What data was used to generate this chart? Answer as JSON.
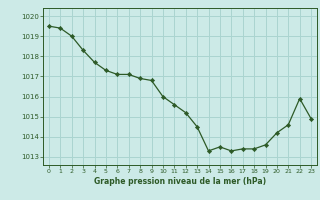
{
  "x": [
    0,
    1,
    2,
    3,
    4,
    5,
    6,
    7,
    8,
    9,
    10,
    11,
    12,
    13,
    14,
    15,
    16,
    17,
    18,
    19,
    20,
    21,
    22,
    23
  ],
  "y": [
    1019.5,
    1019.4,
    1019.0,
    1018.3,
    1017.7,
    1017.3,
    1017.1,
    1017.1,
    1016.9,
    1016.8,
    1016.0,
    1015.6,
    1015.2,
    1014.5,
    1013.3,
    1013.5,
    1013.3,
    1013.4,
    1013.4,
    1013.6,
    1014.2,
    1014.6,
    1015.9,
    1014.9
  ],
  "line_color": "#2d5a27",
  "marker_color": "#2d5a27",
  "bg_color": "#cceae7",
  "grid_color": "#aad4d0",
  "xlabel": "Graphe pression niveau de la mer (hPa)",
  "xlabel_color": "#2d5a27",
  "tick_color": "#2d5a27",
  "ylim_min": 1012.6,
  "ylim_max": 1020.4,
  "xlim_min": -0.5,
  "xlim_max": 23.5,
  "yticks": [
    1013,
    1014,
    1015,
    1016,
    1017,
    1018,
    1019,
    1020
  ],
  "xticks": [
    0,
    1,
    2,
    3,
    4,
    5,
    6,
    7,
    8,
    9,
    10,
    11,
    12,
    13,
    14,
    15,
    16,
    17,
    18,
    19,
    20,
    21,
    22,
    23
  ]
}
